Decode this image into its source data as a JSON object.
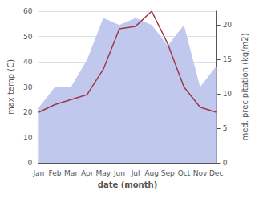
{
  "chart_data": {
    "type": "line",
    "xlabel": "date (month)",
    "ylabel": "max temp (C)",
    "y2label": "med. precipitation (kg/m2)",
    "categories": [
      "Jan",
      "Feb",
      "Mar",
      "Apr",
      "May",
      "Jun",
      "Jul",
      "Aug",
      "Sep",
      "Oct",
      "Nov",
      "Dec"
    ],
    "series": [
      {
        "type": "area",
        "color": "#c0c8ee",
        "axis": "y2",
        "values": [
          8,
          11,
          11,
          15,
          21,
          20,
          21,
          20,
          17,
          20,
          11,
          14
        ]
      },
      {
        "type": "line",
        "color": "#9e3a47",
        "values": [
          20,
          23,
          25,
          27,
          37,
          53,
          54,
          60,
          47,
          30,
          22,
          20
        ]
      }
    ],
    "ylim": [
      0,
      60
    ],
    "yticks": [
      0,
      10,
      20,
      30,
      40,
      50,
      60
    ],
    "y2lim": [
      0,
      22
    ],
    "y2ticks": [
      0,
      5,
      10,
      15,
      20
    ],
    "grid": true
  }
}
